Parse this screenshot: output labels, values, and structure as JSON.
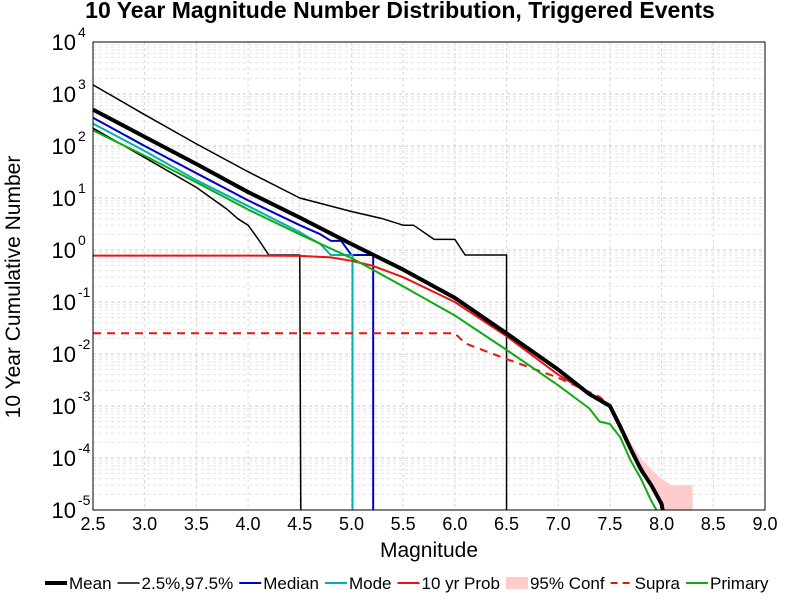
{
  "chart_data": {
    "type": "line",
    "title": "10 Year Magnitude Number Distribution, Triggered Events",
    "xlabel": "Magnitude",
    "ylabel": "10 Year Cumulative Number",
    "xlim": [
      2.5,
      9.0
    ],
    "ylim": [
      1e-05,
      10000
    ],
    "yscale": "log",
    "grid": true,
    "legend_position": "bottom",
    "xticks": [
      "2.5",
      "3.0",
      "3.5",
      "4.0",
      "4.5",
      "5.0",
      "5.5",
      "6.0",
      "6.5",
      "7.0",
      "7.5",
      "8.0",
      "8.5",
      "9.0"
    ],
    "yticks": [
      {
        "value": 1e-05,
        "base": "10",
        "exp": "-5"
      },
      {
        "value": 0.0001,
        "base": "10",
        "exp": "-4"
      },
      {
        "value": 0.001,
        "base": "10",
        "exp": "-3"
      },
      {
        "value": 0.01,
        "base": "10",
        "exp": "-2"
      },
      {
        "value": 0.1,
        "base": "10",
        "exp": "-1"
      },
      {
        "value": 1,
        "base": "10",
        "exp": "0"
      },
      {
        "value": 10,
        "base": "10",
        "exp": "1"
      },
      {
        "value": 100,
        "base": "10",
        "exp": "2"
      },
      {
        "value": 1000,
        "base": "10",
        "exp": "3"
      },
      {
        "value": 10000,
        "base": "10",
        "exp": "4"
      }
    ],
    "series": [
      {
        "name": "Mean",
        "color": "#000000",
        "style": "solid",
        "width": 4,
        "x": [
          2.5,
          3.0,
          3.5,
          4.0,
          4.5,
          5.0,
          5.5,
          6.0,
          6.5,
          7.0,
          7.3,
          7.5,
          7.6,
          7.7,
          7.8,
          7.9,
          8.0,
          8.01
        ],
        "y": [
          500,
          150,
          45,
          13,
          4.2,
          1.3,
          0.42,
          0.12,
          0.025,
          0.005,
          0.0017,
          0.001,
          0.0004,
          0.00015,
          6e-05,
          3e-05,
          1.3e-05,
          1e-05
        ]
      },
      {
        "name": "2.5%",
        "color": "#000000",
        "style": "solid",
        "width": 1.5,
        "x": [
          2.5,
          3.0,
          3.5,
          3.8,
          3.9,
          4.0,
          4.1,
          4.2,
          4.3,
          4.4,
          4.5,
          4.51,
          4.51
        ],
        "y": [
          220,
          60,
          16,
          6,
          4,
          3,
          1.6,
          0.8,
          0.8,
          0.8,
          0.8,
          1e-05,
          1e-05
        ]
      },
      {
        "name": "97.5%",
        "color": "#000000",
        "style": "solid",
        "width": 1.5,
        "x": [
          2.5,
          3.0,
          3.5,
          4.0,
          4.5,
          5.0,
          5.3,
          5.5,
          5.6,
          5.8,
          6.0,
          6.1,
          6.2,
          6.3,
          6.49,
          6.5,
          6.5
        ],
        "y": [
          1500,
          400,
          110,
          32,
          10,
          5.5,
          4,
          3,
          3,
          1.6,
          1.6,
          0.8,
          0.8,
          0.8,
          0.8,
          0.8,
          1e-05
        ]
      },
      {
        "name": "Median",
        "color": "#0000cc",
        "style": "solid",
        "width": 2,
        "x": [
          2.5,
          3.0,
          3.5,
          4.0,
          4.5,
          4.7,
          4.8,
          4.9,
          5.0,
          5.2,
          5.21,
          5.21
        ],
        "y": [
          350,
          100,
          30,
          9,
          3,
          2,
          1.5,
          1.5,
          0.8,
          0.8,
          0.8,
          1e-05
        ]
      },
      {
        "name": "Mode",
        "color": "#00b3b3",
        "style": "solid",
        "width": 2,
        "x": [
          2.5,
          3.0,
          3.5,
          4.0,
          4.5,
          4.7,
          4.8,
          5.0,
          5.01,
          5.01
        ],
        "y": [
          270,
          80,
          22,
          7,
          2.2,
          1.3,
          0.8,
          0.8,
          0.8,
          1e-05
        ]
      },
      {
        "name": "10 yr Prob",
        "color": "#ee1111",
        "style": "solid",
        "width": 2,
        "x": [
          2.5,
          3.0,
          3.5,
          4.0,
          4.5,
          4.8,
          5.0,
          5.2,
          5.5,
          6.0,
          6.5,
          7.0,
          7.5,
          7.6,
          7.8,
          8.0
        ],
        "y": [
          0.78,
          0.78,
          0.78,
          0.78,
          0.77,
          0.72,
          0.62,
          0.5,
          0.3,
          0.1,
          0.022,
          0.004,
          0.001,
          0.0004,
          6e-05,
          1.3e-05
        ]
      },
      {
        "name": "Supra",
        "color": "#ee1111",
        "style": "dashed",
        "width": 2,
        "x": [
          2.5,
          3.0,
          4.0,
          5.0,
          6.0,
          6.1,
          6.5,
          7.0,
          7.4,
          7.5,
          7.7,
          7.9,
          8.0
        ],
        "y": [
          0.025,
          0.025,
          0.025,
          0.025,
          0.025,
          0.016,
          0.008,
          0.0035,
          0.0015,
          0.001,
          0.00015,
          3e-05,
          1.2e-05
        ]
      },
      {
        "name": "Primary",
        "color": "#11aa11",
        "style": "solid",
        "width": 2,
        "x": [
          2.5,
          3.0,
          3.5,
          4.0,
          4.5,
          5.0,
          5.5,
          6.0,
          6.5,
          7.0,
          7.3,
          7.4,
          7.5,
          7.6,
          7.7,
          7.8,
          7.9,
          7.95
        ],
        "y": [
          200,
          65,
          20,
          6,
          2,
          0.7,
          0.2,
          0.055,
          0.012,
          0.0025,
          0.0009,
          0.0005,
          0.00045,
          0.00025,
          9e-05,
          4e-05,
          1.5e-05,
          1e-05
        ]
      }
    ],
    "confidence_band": {
      "name": "95% Conf",
      "color": "#ffcccc",
      "x": [
        7.5,
        7.6,
        7.7,
        7.8,
        7.9,
        8.0,
        8.1,
        8.2,
        8.3
      ],
      "upper": [
        0.0012,
        0.0005,
        0.0002,
        0.0001,
        6e-05,
        4e-05,
        3e-05,
        3e-05,
        3e-05
      ],
      "lower": [
        0.001,
        0.0004,
        0.00015,
        6e-05,
        3e-05,
        1e-05,
        1e-05,
        1e-05,
        1e-05
      ]
    },
    "legend": [
      {
        "label": "Mean",
        "color": "#000000",
        "style": "solid",
        "width": 4
      },
      {
        "label": "2.5%,97.5%",
        "color": "#000000",
        "style": "solid",
        "width": 1.5
      },
      {
        "label": "Median",
        "color": "#0000cc",
        "style": "solid",
        "width": 2
      },
      {
        "label": "Mode",
        "color": "#00b3b3",
        "style": "solid",
        "width": 2
      },
      {
        "label": "10 yr Prob",
        "color": "#ee1111",
        "style": "solid",
        "width": 2
      },
      {
        "label": "95% Conf",
        "color": "#ffcccc",
        "style": "patch",
        "width": 8
      },
      {
        "label": "Supra",
        "color": "#ee1111",
        "style": "dashed",
        "width": 2
      },
      {
        "label": "Primary",
        "color": "#11aa11",
        "style": "solid",
        "width": 2
      }
    ]
  }
}
